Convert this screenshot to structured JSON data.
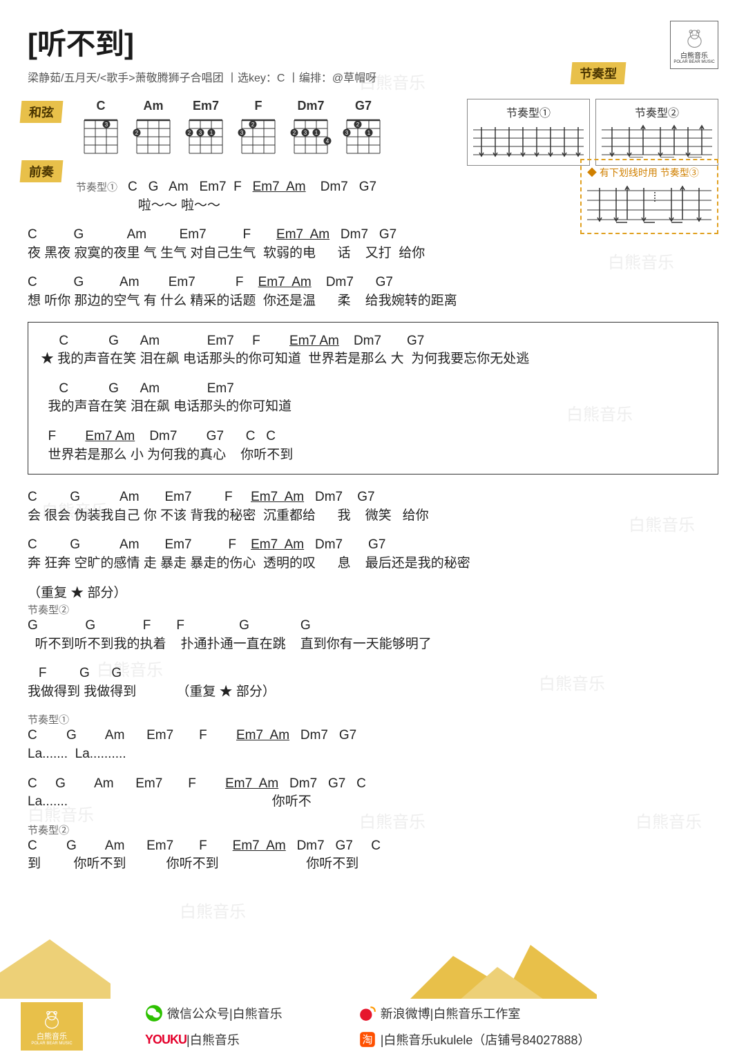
{
  "title": "[听不到]",
  "subtitle": "梁静茹/五月天/<歌手>萧敬腾狮子合唱团 丨选key：C 丨编排：@草帽呀",
  "brand": "白熊音乐",
  "brand_en": "POLAR BEAR MUSIC",
  "tags": {
    "rhythm": "节奏型",
    "chord": "和弦",
    "intro": "前奏"
  },
  "chords": [
    "C",
    "Am",
    "Em7",
    "F",
    "Dm7",
    "G7"
  ],
  "strum_labels": [
    "节奏型①",
    "节奏型②"
  ],
  "strum_note": "◆ 有下划线时用 节奏型③",
  "intro": {
    "rhythm": "节奏型①",
    "chords": "C   G   Am   Em7  F   Em7  Am    Dm7   G7",
    "lyrics": "啦～～ 啦～～"
  },
  "verses": [
    {
      "c": "C          G            Am         Em7          F       Em7  Am   Dm7   G7",
      "l": "夜 黑夜 寂寞的夜里 气 生气 对自己生气  软弱的电      话    又打  给你"
    },
    {
      "c": "C          G          Am        Em7           F    Em7  Am    Dm7      G7",
      "l": "想 听你 那边的空气 有 什么 精采的话题  你还是温      柔    给我婉转的距离"
    }
  ],
  "chorus": {
    "lines": [
      {
        "c": "     C           G      Am             Em7     F        Em7 Am    Dm7       G7",
        "l": "★ 我的声音在笑 泪在飙 电话那头的你可知道  世界若是那么 大  为何我要忘你无处逃"
      },
      {
        "c": "     C           G      Am             Em7",
        "l": "  我的声音在笑 泪在飙 电话那头的你可知道"
      },
      {
        "c": "  F        Em7 Am    Dm7        G7      C   C",
        "l": "  世界若是那么 小 为何我的真心    你听不到"
      }
    ]
  },
  "verses2": [
    {
      "c": "C         G           Am       Em7         F     Em7  Am   Dm7    G7",
      "l": "会 很会 伪装我自己 你 不该 背我的秘密  沉重都给      我    微笑   给你"
    },
    {
      "c": "C         G           Am       Em7          F    Em7  Am   Dm7       G7",
      "l": "奔 狂奔 空旷的感情 走 暴走 暴走的伤心  透明的叹      息    最后还是我的秘密"
    }
  ],
  "repeat": "（重复 ★ 部分）",
  "bridge_rhythm": "节奏型②",
  "bridge": [
    {
      "c": "G             G             F       F               G              G",
      "l": "  听不到听不到我的执着    扑通扑通一直在跳    直到你有一天能够明了"
    },
    {
      "c": "   F         G      G",
      "l": "我做得到 我做得到           （重复 ★ 部分）"
    }
  ],
  "outro_rhythm1": "节奏型①",
  "outro1": [
    {
      "c": "C        G        Am      Em7       F        Em7  Am   Dm7   G7",
      "l": "La.......  La.........."
    },
    {
      "c": "C     G        Am      Em7       F        Em7  Am   Dm7   G7   C",
      "l": "La.......                                                        你听不"
    }
  ],
  "outro_rhythm2": "节奏型②",
  "outro2": {
    "c": "C        G        Am      Em7       F       Em7  Am   Dm7   G7     C",
    "l": "到         你听不到           你听不到                        你听不到"
  },
  "footer": {
    "wechat": "微信公众号|白熊音乐",
    "youku": "|白熊音乐",
    "weibo": "新浪微博|白熊音乐工作室",
    "taobao": "|白熊音乐ukulele（店铺号84027888）",
    "youku_brand": "YOUKU"
  },
  "colors": {
    "accent": "#e8c04a",
    "text": "#333333",
    "orange": "#d08000"
  }
}
